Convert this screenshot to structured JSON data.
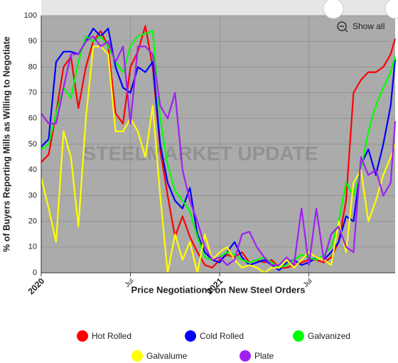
{
  "chart_data": {
    "type": "line",
    "x_label": "Price Negotiations on New Steel Orders",
    "y_label": "% of Buyers Reporting Mills as Willing to Negotiate",
    "watermark": "STEELMARKET UPDATE",
    "zoom_button": "Show all",
    "x": [
      0,
      0.5,
      1,
      1.5,
      2,
      2.5,
      3,
      3.5,
      4,
      4.5,
      5,
      5.5,
      6,
      6.5,
      7,
      7.5,
      8,
      8.5,
      9,
      9.5,
      10,
      10.5,
      11,
      11.5,
      12,
      12.5,
      13,
      13.5,
      14,
      14.5,
      15,
      15.5,
      16,
      16.5,
      17,
      17.5,
      18,
      18.5,
      19,
      19.5,
      20,
      20.5,
      21,
      21.5,
      22,
      22.5,
      23,
      23.5,
      23.8
    ],
    "xlim": [
      0,
      23.8
    ],
    "xticks": [
      {
        "value": 0,
        "label": "2020"
      },
      {
        "value": 6,
        "label": "Jul"
      },
      {
        "value": 12,
        "label": "2021"
      },
      {
        "value": 18,
        "label": "Jul"
      }
    ],
    "ylim": [
      0,
      100
    ],
    "yticks": [
      0,
      10,
      20,
      30,
      40,
      50,
      60,
      70,
      80,
      90,
      100
    ],
    "grid": true,
    "series": [
      {
        "name": "Hot Rolled",
        "color": "#ff0000",
        "values": [
          43,
          46,
          62,
          80,
          84,
          64,
          80,
          90,
          94,
          88,
          62,
          58,
          80,
          86,
          96,
          80,
          48,
          30,
          14,
          22,
          14,
          8,
          3,
          2,
          5,
          7,
          6,
          8,
          4,
          5,
          4,
          5,
          2,
          2,
          3,
          4,
          5,
          5,
          4,
          6,
          12,
          28,
          70,
          75,
          78,
          78,
          80,
          85,
          91
        ]
      },
      {
        "name": "Cold Rolled",
        "color": "#0000ff",
        "values": [
          49,
          52,
          82,
          86,
          86,
          85,
          90,
          95,
          92,
          95,
          80,
          72,
          70,
          80,
          78,
          82,
          50,
          35,
          28,
          25,
          33,
          15,
          8,
          5,
          4,
          8,
          12,
          6,
          3,
          4,
          5,
          3,
          1,
          4,
          5,
          3,
          4,
          6,
          5,
          8,
          12,
          22,
          20,
          42,
          48,
          38,
          50,
          65,
          83
        ]
      },
      {
        "name": "Galvanized",
        "color": "#00ff00",
        "values": [
          48,
          50,
          62,
          72,
          68,
          82,
          92,
          90,
          92,
          88,
          82,
          78,
          88,
          92,
          93,
          94,
          60,
          42,
          32,
          28,
          24,
          14,
          6,
          5,
          6,
          8,
          7,
          5,
          4,
          5,
          6,
          4,
          2,
          3,
          5,
          7,
          6,
          5,
          7,
          10,
          20,
          35,
          30,
          40,
          55,
          65,
          72,
          78,
          84
        ]
      },
      {
        "name": "Galvalume",
        "color": "#ffff00",
        "values": [
          37,
          25,
          12,
          55,
          45,
          18,
          60,
          88,
          88,
          85,
          55,
          55,
          60,
          55,
          45,
          65,
          30,
          0,
          15,
          5,
          12,
          0,
          15,
          5,
          8,
          10,
          5,
          2,
          3,
          2,
          0,
          2,
          2,
          5,
          2,
          5,
          8,
          6,
          5,
          3,
          20,
          8,
          35,
          40,
          20,
          28,
          38,
          45,
          50
        ]
      },
      {
        "name": "Plate",
        "color": "#a020f0",
        "values": [
          62,
          58,
          58,
          72,
          85,
          85,
          90,
          92,
          88,
          90,
          82,
          88,
          58,
          88,
          88,
          85,
          65,
          60,
          70,
          40,
          28,
          20,
          10,
          5,
          6,
          3,
          5,
          15,
          16,
          10,
          6,
          3,
          3,
          6,
          3,
          25,
          3,
          25,
          5,
          15,
          18,
          10,
          8,
          45,
          38,
          40,
          30,
          35,
          59
        ]
      }
    ]
  }
}
